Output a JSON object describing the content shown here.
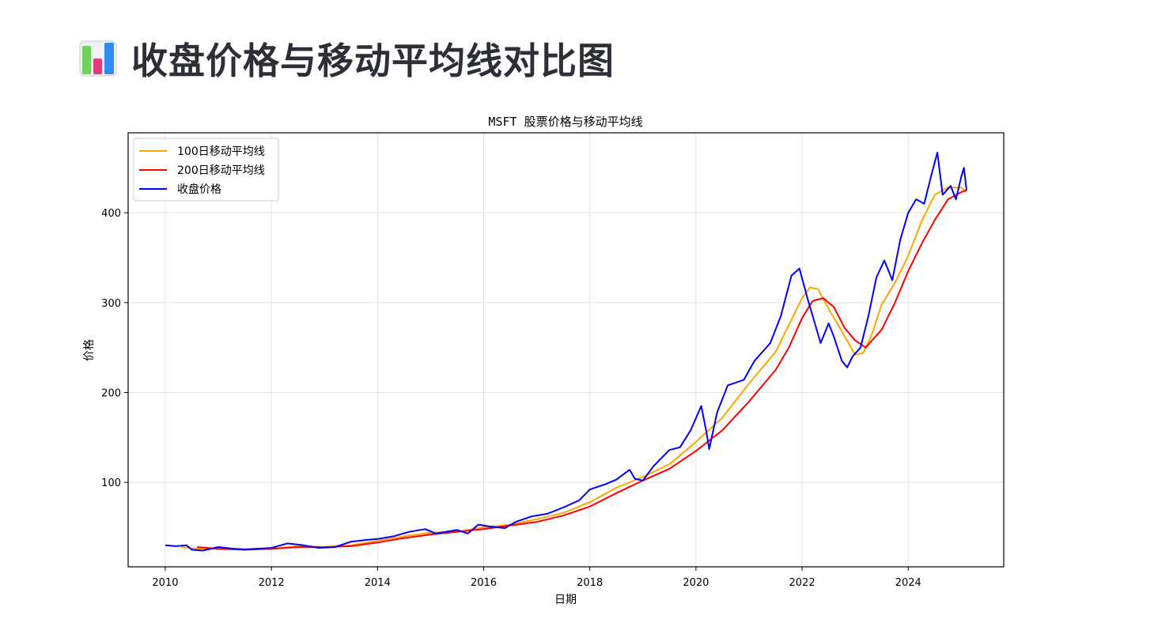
{
  "page": {
    "heading": "收盘价格与移动平均线对比图",
    "heading_icon": "bar-chart-icon"
  },
  "chart_data": {
    "type": "line",
    "title": "MSFT 股票价格与移动平均线",
    "xlabel": "日期",
    "ylabel": "价格",
    "xlim": [
      2009.3,
      2025.8
    ],
    "ylim": [
      6,
      489
    ],
    "x_ticks": [
      2010,
      2012,
      2014,
      2016,
      2018,
      2020,
      2022,
      2024
    ],
    "y_ticks": [
      100,
      200,
      300,
      400
    ],
    "grid": true,
    "legend_position": "top-left",
    "series": [
      {
        "name": "100日移动平均线",
        "color": "#ffa500",
        "points": [
          [
            2010.3,
            28
          ],
          [
            2010.6,
            26
          ],
          [
            2011.0,
            26
          ],
          [
            2011.5,
            26
          ],
          [
            2012.0,
            26
          ],
          [
            2012.5,
            29
          ],
          [
            2013.0,
            28
          ],
          [
            2013.5,
            30
          ],
          [
            2014.0,
            35
          ],
          [
            2014.5,
            40
          ],
          [
            2015.0,
            44
          ],
          [
            2015.5,
            45
          ],
          [
            2016.0,
            50
          ],
          [
            2016.5,
            53
          ],
          [
            2017.0,
            59
          ],
          [
            2017.5,
            66
          ],
          [
            2018.0,
            78
          ],
          [
            2018.5,
            94
          ],
          [
            2019.0,
            106
          ],
          [
            2019.5,
            120
          ],
          [
            2020.0,
            145
          ],
          [
            2020.5,
            172
          ],
          [
            2021.0,
            210
          ],
          [
            2021.5,
            245
          ],
          [
            2021.75,
            275
          ],
          [
            2022.0,
            305
          ],
          [
            2022.15,
            317
          ],
          [
            2022.3,
            315
          ],
          [
            2022.5,
            293
          ],
          [
            2022.75,
            268
          ],
          [
            2023.0,
            242
          ],
          [
            2023.15,
            244
          ],
          [
            2023.3,
            262
          ],
          [
            2023.5,
            298
          ],
          [
            2023.75,
            322
          ],
          [
            2024.0,
            352
          ],
          [
            2024.25,
            390
          ],
          [
            2024.5,
            420
          ],
          [
            2024.75,
            428
          ],
          [
            2025.0,
            428
          ],
          [
            2025.1,
            423
          ]
        ]
      },
      {
        "name": "200日移动平均线",
        "color": "#ff0000",
        "points": [
          [
            2010.6,
            28
          ],
          [
            2011.0,
            26
          ],
          [
            2011.5,
            25
          ],
          [
            2012.0,
            26
          ],
          [
            2012.5,
            28
          ],
          [
            2013.0,
            28
          ],
          [
            2013.5,
            29
          ],
          [
            2014.0,
            33
          ],
          [
            2014.5,
            38
          ],
          [
            2015.0,
            42
          ],
          [
            2015.5,
            45
          ],
          [
            2016.0,
            48
          ],
          [
            2016.5,
            52
          ],
          [
            2017.0,
            56
          ],
          [
            2017.5,
            63
          ],
          [
            2018.0,
            73
          ],
          [
            2018.5,
            88
          ],
          [
            2019.0,
            102
          ],
          [
            2019.5,
            115
          ],
          [
            2020.0,
            135
          ],
          [
            2020.5,
            158
          ],
          [
            2021.0,
            190
          ],
          [
            2021.5,
            225
          ],
          [
            2021.75,
            250
          ],
          [
            2022.0,
            283
          ],
          [
            2022.2,
            302
          ],
          [
            2022.4,
            305
          ],
          [
            2022.6,
            295
          ],
          [
            2022.8,
            272
          ],
          [
            2023.0,
            258
          ],
          [
            2023.2,
            250
          ],
          [
            2023.5,
            270
          ],
          [
            2023.75,
            300
          ],
          [
            2024.0,
            335
          ],
          [
            2024.25,
            365
          ],
          [
            2024.5,
            392
          ],
          [
            2024.75,
            415
          ],
          [
            2025.0,
            423
          ],
          [
            2025.1,
            425
          ]
        ]
      },
      {
        "name": "收盘价格",
        "color": "#0000ff",
        "points": [
          [
            2010.0,
            30
          ],
          [
            2010.2,
            29
          ],
          [
            2010.4,
            30
          ],
          [
            2010.5,
            25
          ],
          [
            2010.7,
            24
          ],
          [
            2011.0,
            28
          ],
          [
            2011.3,
            26
          ],
          [
            2011.5,
            25
          ],
          [
            2011.7,
            26
          ],
          [
            2012.0,
            27
          ],
          [
            2012.3,
            32
          ],
          [
            2012.6,
            30
          ],
          [
            2012.9,
            27
          ],
          [
            2013.2,
            28
          ],
          [
            2013.5,
            34
          ],
          [
            2013.8,
            36
          ],
          [
            2014.0,
            37
          ],
          [
            2014.3,
            40
          ],
          [
            2014.6,
            45
          ],
          [
            2014.9,
            48
          ],
          [
            2015.1,
            43
          ],
          [
            2015.5,
            47
          ],
          [
            2015.7,
            43
          ],
          [
            2015.9,
            53
          ],
          [
            2016.1,
            51
          ],
          [
            2016.4,
            49
          ],
          [
            2016.6,
            56
          ],
          [
            2016.9,
            62
          ],
          [
            2017.2,
            65
          ],
          [
            2017.5,
            72
          ],
          [
            2017.8,
            80
          ],
          [
            2018.0,
            92
          ],
          [
            2018.3,
            98
          ],
          [
            2018.5,
            103
          ],
          [
            2018.75,
            114
          ],
          [
            2018.85,
            104
          ],
          [
            2019.0,
            102
          ],
          [
            2019.2,
            118
          ],
          [
            2019.5,
            136
          ],
          [
            2019.7,
            139
          ],
          [
            2019.9,
            158
          ],
          [
            2020.1,
            185
          ],
          [
            2020.2,
            155
          ],
          [
            2020.25,
            137
          ],
          [
            2020.4,
            178
          ],
          [
            2020.6,
            208
          ],
          [
            2020.9,
            214
          ],
          [
            2021.1,
            235
          ],
          [
            2021.4,
            255
          ],
          [
            2021.6,
            285
          ],
          [
            2021.8,
            330
          ],
          [
            2021.95,
            338
          ],
          [
            2022.1,
            305
          ],
          [
            2022.2,
            285
          ],
          [
            2022.35,
            255
          ],
          [
            2022.5,
            277
          ],
          [
            2022.6,
            262
          ],
          [
            2022.75,
            235
          ],
          [
            2022.85,
            228
          ],
          [
            2022.95,
            240
          ],
          [
            2023.1,
            250
          ],
          [
            2023.25,
            285
          ],
          [
            2023.4,
            328
          ],
          [
            2023.55,
            347
          ],
          [
            2023.7,
            325
          ],
          [
            2023.85,
            370
          ],
          [
            2024.0,
            400
          ],
          [
            2024.15,
            415
          ],
          [
            2024.3,
            410
          ],
          [
            2024.45,
            445
          ],
          [
            2024.55,
            467
          ],
          [
            2024.65,
            420
          ],
          [
            2024.8,
            430
          ],
          [
            2024.9,
            415
          ],
          [
            2025.0,
            440
          ],
          [
            2025.05,
            450
          ],
          [
            2025.1,
            425
          ]
        ]
      }
    ]
  }
}
